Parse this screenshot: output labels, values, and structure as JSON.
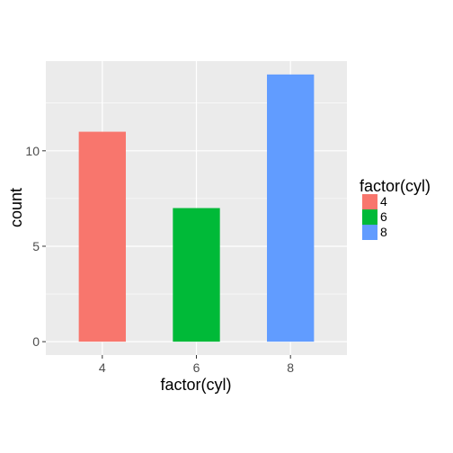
{
  "chart_data": {
    "type": "bar",
    "categories": [
      "4",
      "6",
      "8"
    ],
    "values": [
      11,
      7,
      14
    ],
    "xlabel": "factor(cyl)",
    "ylabel": "count",
    "ylim": [
      0,
      14.7
    ],
    "yticks": [
      "0",
      "5",
      "10"
    ],
    "grid": true,
    "legend": {
      "title": "factor(cyl)",
      "position": "right",
      "entries": [
        "4",
        "6",
        "8"
      ]
    },
    "colors": [
      "#F8766D",
      "#00BA38",
      "#619CFF"
    ],
    "panel_background": "#EBEBEB",
    "grid_color": "#FFFFFF"
  }
}
